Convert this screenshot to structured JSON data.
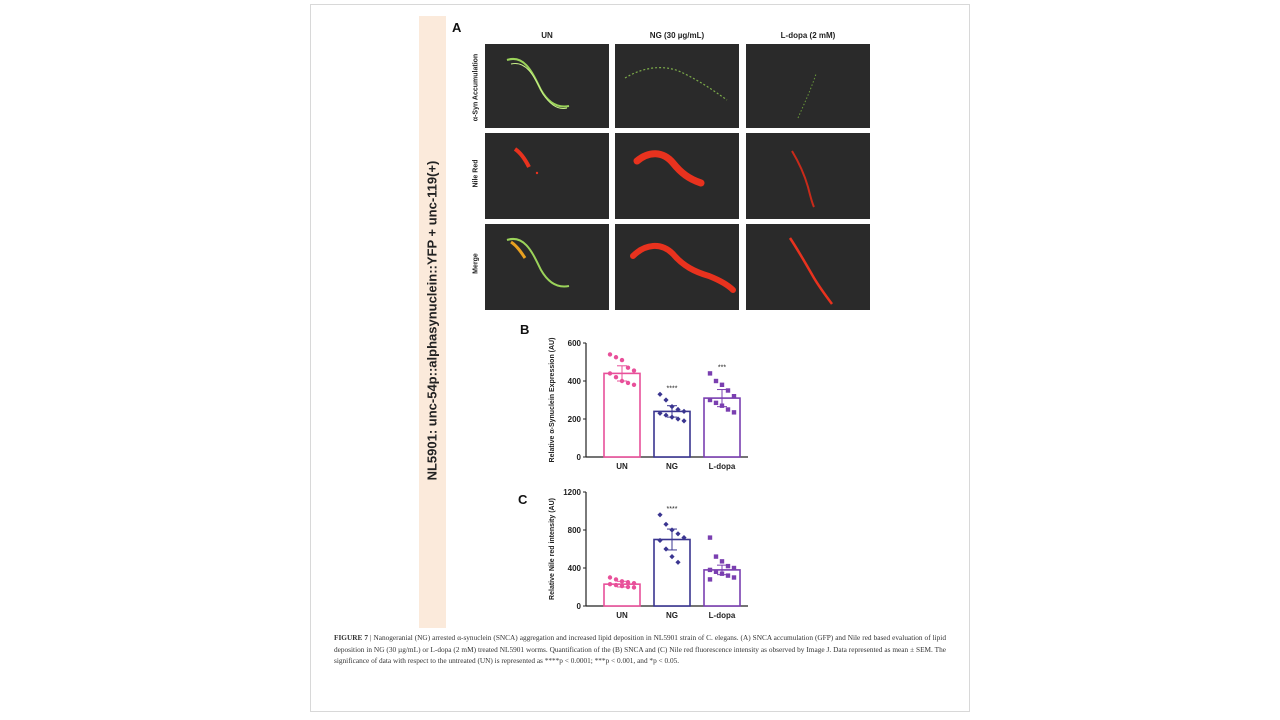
{
  "side_label": "NL5901: unc-54p::alphasynuclein::YFP + unc-119(+)",
  "panel_a": {
    "letter": "A",
    "columns": [
      "UN",
      "NG (30 µg/mL)",
      "L-dopa (2 mM)"
    ],
    "rows": [
      "α-Syn Accumulation",
      "Nile Red",
      "Merge"
    ],
    "colors": {
      "green": "#9bd35a",
      "red": "#e8321e",
      "background": "#2a2a2a"
    }
  },
  "panel_b": {
    "letter": "B",
    "chart_data": {
      "type": "bar",
      "categories": [
        "UN",
        "NG",
        "L-dopa"
      ],
      "values": [
        440,
        240,
        310
      ],
      "errors": [
        40,
        30,
        45
      ],
      "points": [
        [
          540,
          525,
          510,
          470,
          455,
          440,
          420,
          400,
          390,
          380
        ],
        [
          330,
          300,
          265,
          250,
          240,
          230,
          220,
          210,
          200,
          190
        ],
        [
          440,
          400,
          380,
          350,
          320,
          300,
          285,
          270,
          250,
          235
        ]
      ],
      "significance": [
        "",
        "****",
        "***"
      ],
      "ylabel": "Relative α-Synuclein Expression (AU)",
      "ylim": [
        0,
        600
      ],
      "yticks": [
        "0",
        "200",
        "400",
        "600"
      ],
      "colors": [
        "#e8509a",
        "#3a3590",
        "#7a3fb0"
      ]
    }
  },
  "panel_c": {
    "letter": "C",
    "chart_data": {
      "type": "bar",
      "categories": [
        "UN",
        "NG",
        "L-dopa"
      ],
      "values": [
        230,
        700,
        380
      ],
      "errors": [
        30,
        110,
        50
      ],
      "points": [
        [
          300,
          280,
          260,
          250,
          240,
          230,
          220,
          210,
          200,
          195
        ],
        [
          960,
          860,
          800,
          760,
          720,
          690,
          600,
          520,
          460
        ],
        [
          720,
          520,
          470,
          420,
          400,
          380,
          360,
          340,
          320,
          300,
          280
        ]
      ],
      "significance": [
        "",
        "****",
        ""
      ],
      "ylabel": "Relative Nile red intensity (AU)",
      "ylim": [
        0,
        1200
      ],
      "yticks": [
        "0",
        "400",
        "800",
        "1200"
      ],
      "colors": [
        "#e8509a",
        "#3a3590",
        "#7a3fb0"
      ]
    }
  },
  "caption": {
    "label": "FIGURE 7",
    "text": "| Nanogeranial (NG) arrested α-synuclein (SNCA) aggregation and increased lipid deposition in NL5901 strain of C. elegans. (A) SNCA accumulation (GFP) and Nile red based evaluation of lipid deposition in NG (30 µg/mL) or L-dopa (2 mM) treated NL5901 worms. Quantification of the (B) SNCA and (C) Nile red fluorescence intensity as observed by Image J. Data represented as mean ± SEM. The significance of data with respect to the untreated (UN) is represented as ****p < 0.0001; ***p < 0.001, and *p < 0.05."
  }
}
